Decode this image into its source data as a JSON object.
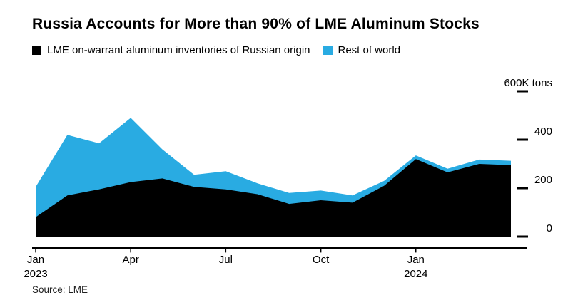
{
  "chart": {
    "title": "Russia Accounts for More than 90% of LME Aluminum Stocks",
    "source": "Source: LME"
  },
  "chart_data": {
    "type": "area",
    "stacked": true,
    "unit": "K tons",
    "title": "Russia Accounts for More than 90% of LME Aluminum Stocks",
    "categories": [
      "Jan 2023",
      "Feb 2023",
      "Mar 2023",
      "Apr 2023",
      "May 2023",
      "Jun 2023",
      "Jul 2023",
      "Aug 2023",
      "Sep 2023",
      "Oct 2023",
      "Nov 2023",
      "Dec 2023",
      "Jan 2024",
      "Feb 2024",
      "Mar 2024",
      "Apr 2024"
    ],
    "series": [
      {
        "name": "LME on-warrant aluminum inventories of Russian origin",
        "color": "#000000",
        "values": [
          80,
          170,
          195,
          225,
          240,
          205,
          195,
          175,
          135,
          150,
          140,
          210,
          320,
          265,
          300,
          295
        ]
      },
      {
        "name": "Rest of world",
        "color": "#29abe2",
        "values": [
          125,
          250,
          190,
          265,
          120,
          50,
          75,
          45,
          45,
          40,
          30,
          20,
          15,
          15,
          18,
          18
        ]
      }
    ],
    "ylim": [
      0,
      600
    ],
    "grid": false,
    "legend_position": "top-left",
    "y_ticks": [
      {
        "value": 0,
        "label": "0"
      },
      {
        "value": 200,
        "label": "200"
      },
      {
        "value": 400,
        "label": "400"
      },
      {
        "value": 600,
        "label": "600K tons"
      }
    ],
    "x_ticks": [
      {
        "index": 0,
        "label": "Jan",
        "year": "2023"
      },
      {
        "index": 3,
        "label": "Apr"
      },
      {
        "index": 6,
        "label": "Jul"
      },
      {
        "index": 9,
        "label": "Oct"
      },
      {
        "index": 12,
        "label": "Jan",
        "year": "2024"
      }
    ]
  }
}
